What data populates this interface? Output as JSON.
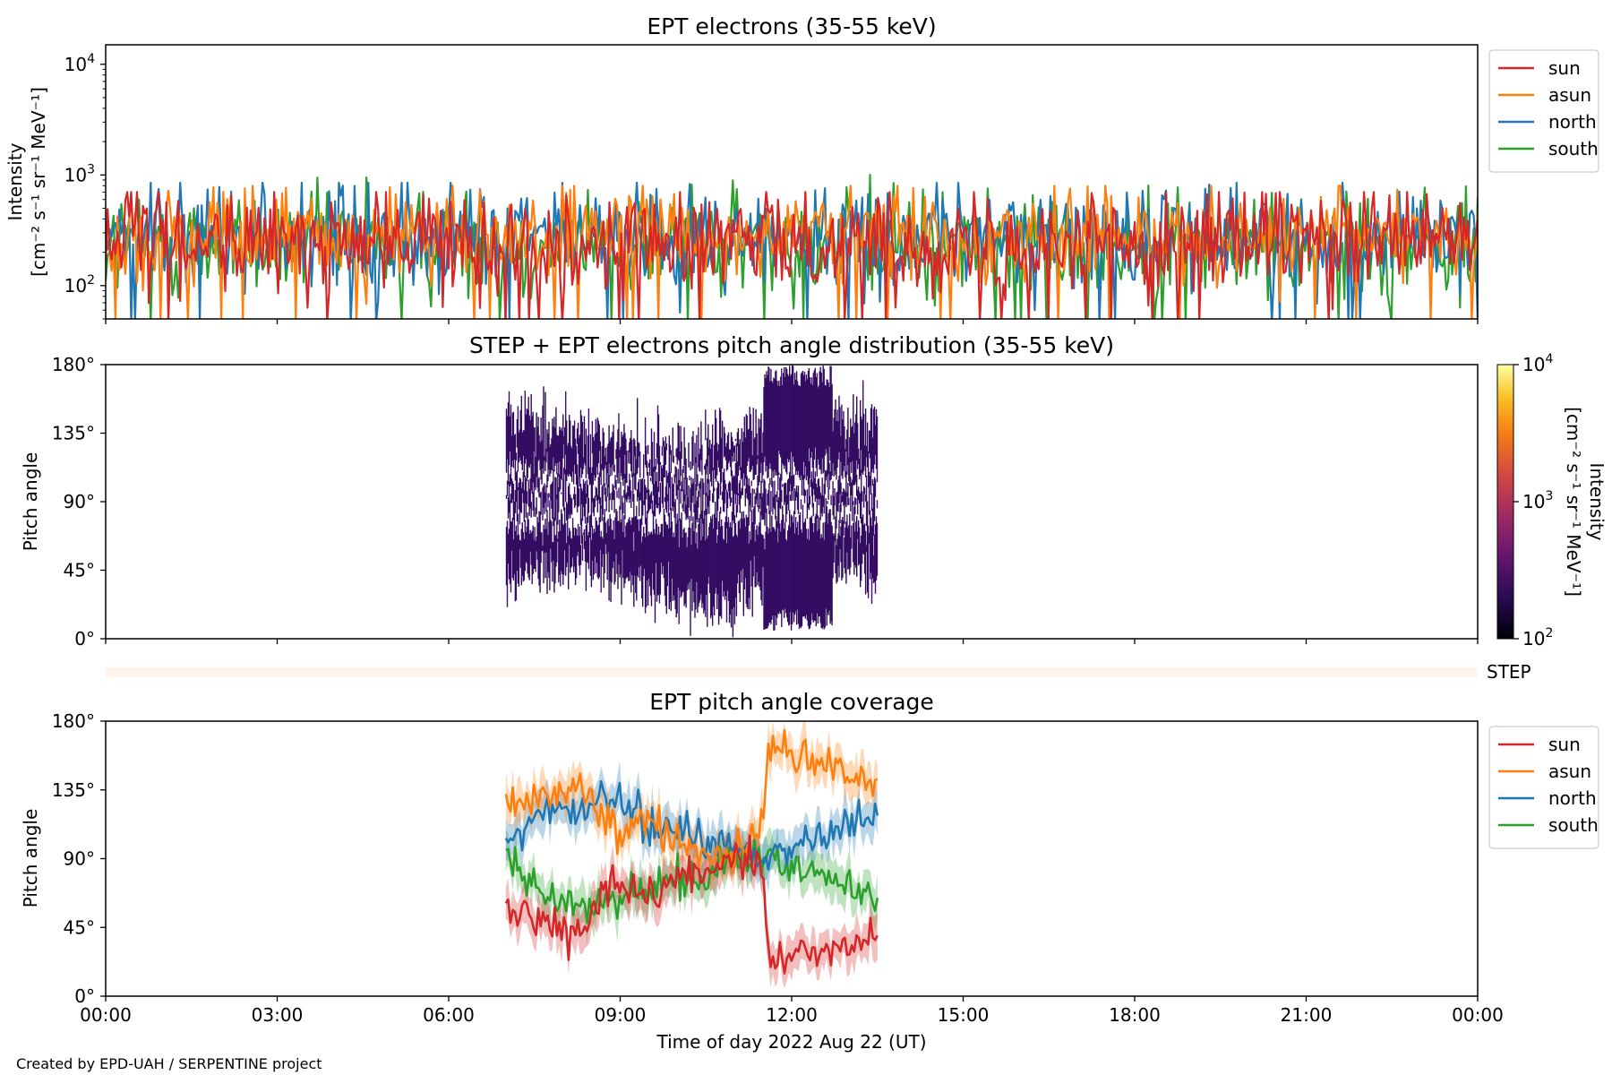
{
  "figure": {
    "credit": "Created by EPD-UAH / SERPENTINE project",
    "xlabel": "Time of day 2022 Aug 22 (UT)",
    "xticks": [
      "00:00",
      "03:00",
      "06:00",
      "09:00",
      "12:00",
      "15:00",
      "18:00",
      "21:00",
      "00:00"
    ],
    "step_label": "STEP"
  },
  "colors": {
    "sun": "#d62728",
    "asun": "#ff7f0e",
    "north": "#1f77b4",
    "south": "#2ca02c",
    "step_band": "#fff4ee",
    "pad_fill": "#3b0f6f"
  },
  "chart_data": [
    {
      "type": "line",
      "title": "EPT electrons (35-55 keV)",
      "ylabel": "Intensity",
      "yunit": "[cm⁻² s⁻¹ sr⁻¹ MeV⁻¹]",
      "yscale": "log",
      "ylim": [
        50,
        15000
      ],
      "yticks": [
        {
          "value": 100,
          "base": "10",
          "exp": "2"
        },
        {
          "value": 1000,
          "base": "10",
          "exp": "3"
        },
        {
          "value": 10000,
          "base": "10",
          "exp": "4"
        }
      ],
      "xlim_hours": [
        0,
        24
      ],
      "legend_position": "right, top",
      "series": [
        {
          "name": "sun",
          "median": 250,
          "spread": 0.32,
          "clip_min": 50,
          "max_approx": 700
        },
        {
          "name": "asun",
          "median": 290,
          "spread": 0.3,
          "clip_min": 50,
          "max_approx": 800
        },
        {
          "name": "north",
          "median": 280,
          "spread": 0.33,
          "clip_min": 50,
          "max_approx": 850
        },
        {
          "name": "south",
          "median": 240,
          "spread": 0.36,
          "clip_min": 50,
          "max_approx": 1100
        }
      ]
    },
    {
      "type": "heatmap",
      "title": "STEP + EPT electrons pitch angle distribution (35-55 keV)",
      "ylabel": "Pitch angle",
      "yticks": [
        "0°",
        "45°",
        "90°",
        "135°",
        "180°"
      ],
      "ylim": [
        0,
        180
      ],
      "time_range_hours": [
        7.0,
        13.5
      ],
      "colorbar": {
        "label": "Intensity",
        "unit": "[cm⁻² s⁻¹ sr⁻¹ MeV⁻¹]",
        "scale": "log",
        "range": [
          100,
          10000
        ],
        "ticks": [
          {
            "value": 100,
            "base": "10",
            "exp": "2"
          },
          {
            "value": 1000,
            "base": "10",
            "exp": "3"
          },
          {
            "value": 10000,
            "base": "10",
            "exp": "4"
          }
        ],
        "colormap": "inferno"
      }
    },
    {
      "type": "line",
      "title": "EPT pitch angle coverage",
      "ylabel": "Pitch angle",
      "yticks": [
        "0°",
        "45°",
        "90°",
        "135°",
        "180°"
      ],
      "ylim": [
        0,
        180
      ],
      "time_range_hours": [
        7.0,
        13.5
      ],
      "legend_position": "right, top",
      "series": [
        {
          "name": "sun",
          "points": [
            [
              7.0,
              55
            ],
            [
              7.5,
              50
            ],
            [
              8.0,
              42
            ],
            [
              8.3,
              40
            ],
            [
              8.7,
              70
            ],
            [
              9.0,
              75
            ],
            [
              9.5,
              65
            ],
            [
              10.0,
              78
            ],
            [
              10.5,
              82
            ],
            [
              11.0,
              92
            ],
            [
              11.5,
              82
            ],
            [
              11.6,
              20
            ],
            [
              12.0,
              25
            ],
            [
              12.5,
              30
            ],
            [
              13.0,
              35
            ],
            [
              13.5,
              42
            ]
          ],
          "band": 12
        },
        {
          "name": "asun",
          "points": [
            [
              7.0,
              125
            ],
            [
              7.5,
              130
            ],
            [
              8.0,
              132
            ],
            [
              8.3,
              140
            ],
            [
              8.7,
              115
            ],
            [
              9.0,
              110
            ],
            [
              9.5,
              118
            ],
            [
              10.0,
              98
            ],
            [
              10.5,
              95
            ],
            [
              11.0,
              92
            ],
            [
              11.5,
              110
            ],
            [
              11.6,
              165
            ],
            [
              12.0,
              162
            ],
            [
              12.5,
              155
            ],
            [
              13.0,
              145
            ],
            [
              13.5,
              138
            ]
          ],
          "band": 12
        },
        {
          "name": "north",
          "points": [
            [
              7.0,
              100
            ],
            [
              7.5,
              118
            ],
            [
              8.0,
              122
            ],
            [
              8.3,
              118
            ],
            [
              8.7,
              130
            ],
            [
              9.0,
              125
            ],
            [
              9.5,
              112
            ],
            [
              10.0,
              108
            ],
            [
              10.5,
              102
            ],
            [
              11.0,
              100
            ],
            [
              11.5,
              88
            ],
            [
              11.6,
              90
            ],
            [
              12.0,
              95
            ],
            [
              12.5,
              102
            ],
            [
              13.0,
              110
            ],
            [
              13.5,
              120
            ]
          ],
          "band": 12
        },
        {
          "name": "south",
          "points": [
            [
              7.0,
              90
            ],
            [
              7.5,
              70
            ],
            [
              8.0,
              62
            ],
            [
              8.3,
              55
            ],
            [
              8.7,
              60
            ],
            [
              9.0,
              65
            ],
            [
              9.5,
              72
            ],
            [
              10.0,
              75
            ],
            [
              10.5,
              80
            ],
            [
              11.0,
              88
            ],
            [
              11.5,
              92
            ],
            [
              11.6,
              90
            ],
            [
              12.0,
              85
            ],
            [
              12.5,
              80
            ],
            [
              13.0,
              72
            ],
            [
              13.5,
              58
            ]
          ],
          "band": 12
        }
      ]
    }
  ]
}
